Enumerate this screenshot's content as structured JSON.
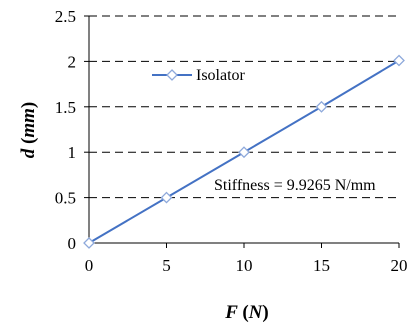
{
  "chart_data": {
    "type": "line",
    "xlabel": "F (N)",
    "ylabel": "d (mm)",
    "xlim": [
      0,
      20
    ],
    "ylim": [
      0,
      2.5
    ],
    "x_ticks": [
      "0",
      "5",
      "10",
      "15",
      "20"
    ],
    "y_ticks": [
      "0",
      "0.5",
      "1",
      "1.5",
      "2",
      "2.5"
    ],
    "grid": "horizontal dashed",
    "legend_position": "top-left",
    "series": [
      {
        "name": "Isolator",
        "x": [
          0,
          5,
          10,
          15,
          20
        ],
        "y": [
          0,
          0.5,
          1.0,
          1.5,
          2.01
        ],
        "color": "#4472C4",
        "marker": "diamond"
      }
    ],
    "annotation": "Stiffness = 9.9265 N/mm"
  }
}
